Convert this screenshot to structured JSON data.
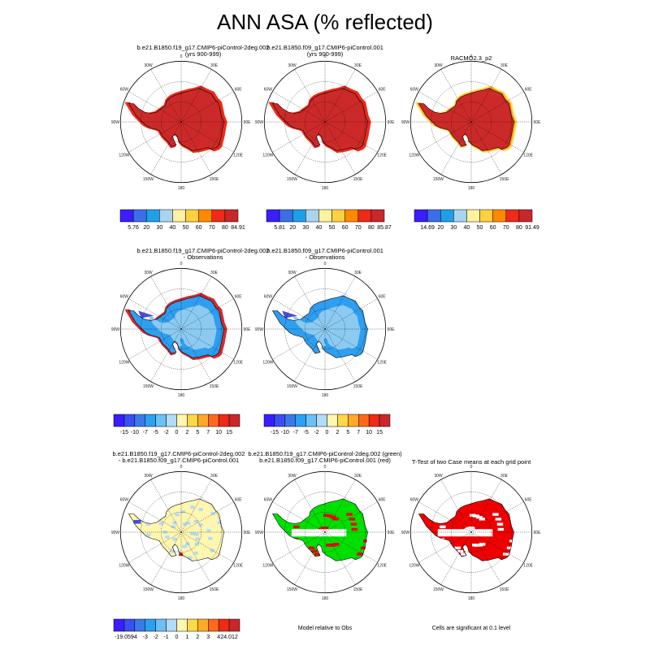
{
  "title": "ANN ASA (% reflected)",
  "lon_labels": [
    "0",
    "30E",
    "60E",
    "90E",
    "120E",
    "150E",
    "180",
    "150W",
    "120W",
    "90W",
    "60W",
    "30W"
  ],
  "panels": [
    {
      "id": "p1",
      "title1": "b.e21.B1850.f19_g17.CMIP6-piControl-2deg.002",
      "title2": "(yrs 900-999)",
      "style": "abs-model"
    },
    {
      "id": "p2",
      "title1": "b.e21.B1850.f09_g17.CMIP6-piControl.001",
      "title2": "(yrs 900-999)",
      "style": "abs-model"
    },
    {
      "id": "p3",
      "title1": "RACMO2.3_p2",
      "title2": "",
      "style": "abs-obs"
    },
    {
      "id": "p4",
      "title1": "b.e21.B1850.f19_g17.CMIP6-piControl-2deg.002",
      "title2": "- Observations",
      "style": "diff-obs-1"
    },
    {
      "id": "p5",
      "title1": "b.e21.B1850.f09_g17.CMIP6-piControl.001",
      "title2": "- Observations",
      "style": "diff-obs-2"
    },
    {
      "id": "p7",
      "title1": "b.e21.B1850.f19_g17.CMIP6-piControl-2deg.002",
      "title2": "- b.e21.B1850.f09_g17.CMIP6-piControl.001",
      "style": "diff-models"
    },
    {
      "id": "p8",
      "title1": "b.e21.B1850.f19_g17.CMIP6-piControl-2deg.002 (green)",
      "title2": "b.e21.B1850.f09_g17.CMIP6-piControl.001 (red)",
      "style": "relative"
    },
    {
      "id": "p9",
      "title1": "T-Test of two Case means at each grid point",
      "title2": "",
      "style": "ttest"
    }
  ],
  "colorbars": [
    {
      "id": "cb1",
      "labels": [
        "5.76",
        "20",
        "30",
        "40",
        "50",
        "60",
        "70",
        "80",
        "84.91"
      ],
      "colors": [
        "#3a1eff",
        "#3a6fe8",
        "#1e9fe8",
        "#a8d4f0",
        "#fff2a0",
        "#ffd040",
        "#ff8a00",
        "#ee2a18",
        "#c8282a"
      ]
    },
    {
      "id": "cb2",
      "labels": [
        "5.81",
        "20",
        "30",
        "40",
        "50",
        "60",
        "70",
        "80",
        "85.87"
      ],
      "colors": [
        "#3a1eff",
        "#3a6fe8",
        "#1e9fe8",
        "#a8d4f0",
        "#fff2a0",
        "#ffd040",
        "#ff8a00",
        "#ee2a18",
        "#c8282a"
      ]
    },
    {
      "id": "cb3",
      "labels": [
        "14.69",
        "20",
        "30",
        "40",
        "50",
        "60",
        "70",
        "80",
        "91.49"
      ],
      "colors": [
        "#3a1eff",
        "#3a6fe8",
        "#1e9fe8",
        "#a8d4f0",
        "#fff2a0",
        "#ffd040",
        "#ff8a00",
        "#ee2a18",
        "#c8282a"
      ]
    },
    {
      "id": "cb4",
      "labels": [
        "-15",
        "-10",
        "-7",
        "-5",
        "-2",
        "0",
        "2",
        "5",
        "7",
        "10",
        "15"
      ],
      "colors": [
        "#3a1eff",
        "#3a4ff0",
        "#3a7ae8",
        "#2aa0f0",
        "#6cc0f4",
        "#b0dcf8",
        "#fff6b0",
        "#ffd84a",
        "#ffaa2a",
        "#ff6a1a",
        "#ee2a18",
        "#c8282a"
      ]
    },
    {
      "id": "cb5",
      "labels": [
        "-15",
        "-10",
        "-7",
        "-5",
        "-2",
        "0",
        "2",
        "5",
        "7",
        "10",
        "15"
      ],
      "colors": [
        "#3a1eff",
        "#3a4ff0",
        "#3a7ae8",
        "#2aa0f0",
        "#6cc0f4",
        "#b0dcf8",
        "#fff6b0",
        "#ffd84a",
        "#ffaa2a",
        "#ff6a1a",
        "#ee2a18",
        "#c8282a"
      ]
    },
    {
      "id": "cb7",
      "labels": [
        "-19.059",
        "-4",
        "-3",
        "-2",
        "-1",
        "0",
        "1",
        "2",
        "3",
        "4",
        "24.012"
      ],
      "colors": [
        "#3a1eff",
        "#3a4ff0",
        "#3a7ae8",
        "#2aa0f0",
        "#6cc0f4",
        "#b0dcf8",
        "#fff6b0",
        "#ffd84a",
        "#ffaa2a",
        "#ff6a1a",
        "#ee2a18",
        "#c8282a"
      ]
    }
  ],
  "notes": {
    "relative": "Model relative to Obs",
    "ttest": "Cells are significant at 0.1 level"
  },
  "chart_data": {
    "type": "heatmap",
    "title": "ANN ASA (% reflected)",
    "projection": "south polar stereographic",
    "variable": "ANN ASA (% reflected)",
    "abs_ranges": [
      {
        "panel": "b.e21.B1850.f19_g17.CMIP6-piControl-2deg.002 (yrs 900-999)",
        "min": 5.76,
        "max": 84.91
      },
      {
        "panel": "b.e21.B1850.f09_g17.CMIP6-piControl.001 (yrs 900-999)",
        "min": 5.81,
        "max": 85.87
      },
      {
        "panel": "RACMO2.3_p2",
        "min": 14.69,
        "max": 91.49
      }
    ],
    "contour_levels_abs": [
      20,
      30,
      40,
      50,
      60,
      70,
      80
    ],
    "contour_levels_diff_obs": [
      -15,
      -10,
      -7,
      -5,
      -2,
      0,
      2,
      5,
      7,
      10,
      15
    ],
    "contour_levels_diff_models": [
      -4,
      -3,
      -2,
      -1,
      0,
      1,
      2,
      3,
      4
    ],
    "diff_models_range": {
      "min": -19.059,
      "max": 24.012
    },
    "colors": {
      "abs_interior": "#cc2a2a",
      "abs_edge": "#ee2a18",
      "diff_interior": "#8ccaf2",
      "diff_edge": "#2e9ef0",
      "diff_positive": "#d8282a",
      "diff_negative": "#4a4ae0",
      "models_diff": "#fff6b0",
      "models_diff_alt": "#b0dcf8",
      "green": "#00e000",
      "red": "#ee0000"
    }
  }
}
